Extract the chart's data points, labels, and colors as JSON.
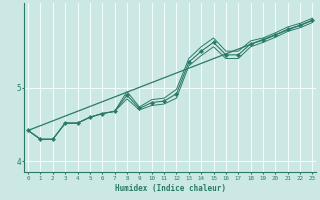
{
  "xlabel": "Humidex (Indice chaleur)",
  "bg_color": "#cce8e4",
  "line_color": "#2a7a6a",
  "grid_color": "#f5fffd",
  "x_data": [
    0,
    1,
    2,
    3,
    4,
    5,
    6,
    7,
    8,
    9,
    10,
    11,
    12,
    13,
    14,
    15,
    16,
    17,
    18,
    19,
    20,
    21,
    22,
    23
  ],
  "main_line": [
    4.42,
    4.3,
    4.3,
    4.52,
    4.52,
    4.6,
    4.65,
    4.68,
    4.9,
    4.72,
    4.8,
    4.82,
    4.92,
    5.35,
    5.5,
    5.62,
    5.45,
    5.45,
    5.6,
    5.65,
    5.72,
    5.8,
    5.85,
    5.92
  ],
  "upper_line": [
    4.42,
    4.3,
    4.3,
    4.52,
    4.52,
    4.6,
    4.65,
    4.68,
    4.95,
    4.74,
    4.84,
    4.86,
    4.98,
    5.4,
    5.56,
    5.68,
    5.5,
    5.5,
    5.64,
    5.68,
    5.75,
    5.83,
    5.88,
    5.95
  ],
  "lower_line": [
    4.42,
    4.3,
    4.3,
    4.52,
    4.52,
    4.6,
    4.65,
    4.68,
    4.85,
    4.7,
    4.76,
    4.78,
    4.86,
    5.3,
    5.44,
    5.56,
    5.4,
    5.4,
    5.56,
    5.62,
    5.69,
    5.77,
    5.82,
    5.89
  ],
  "trend_x": [
    0,
    23
  ],
  "trend_y": [
    4.42,
    5.92
  ],
  "ylim": [
    3.85,
    6.15
  ],
  "xlim": [
    -0.3,
    23.3
  ],
  "yticks": [
    4,
    5
  ],
  "ytick_labels": [
    "4",
    "5"
  ],
  "xticks": [
    0,
    1,
    2,
    3,
    4,
    5,
    6,
    7,
    8,
    9,
    10,
    11,
    12,
    13,
    14,
    15,
    16,
    17,
    18,
    19,
    20,
    21,
    22,
    23
  ]
}
